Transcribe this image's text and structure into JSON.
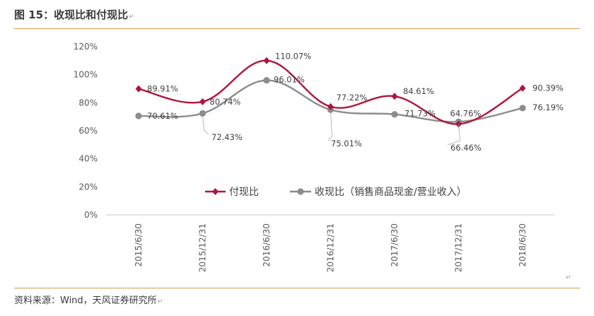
{
  "figure": {
    "title": "图 15：收现比和付现比",
    "source": "资料来源：Wind，天风证券研究所",
    "paragraph_mark": "↵"
  },
  "chart_data": {
    "type": "line",
    "title": "",
    "xlabel": "",
    "ylabel": "",
    "categories": [
      "2015/6/30",
      "2015/12/31",
      "2016/6/30",
      "2016/12/31",
      "2017/6/30",
      "2017/12/31",
      "2018/6/30"
    ],
    "yticks": [
      "0%",
      "20%",
      "40%",
      "60%",
      "80%",
      "100%",
      "120%"
    ],
    "ylim": [
      0,
      120
    ],
    "grid": false,
    "legend_position": "bottom-center",
    "series": [
      {
        "name": "付现比",
        "color": "#b0143c",
        "marker": "diamond",
        "values": [
          89.91,
          80.74,
          110.07,
          77.22,
          84.61,
          64.76,
          90.39
        ],
        "labels": [
          "89.91%",
          "80.74%",
          "110.07%",
          "77.22%",
          "84.61%",
          "64.76%",
          "90.39%"
        ]
      },
      {
        "name": "收现比（销售商品现金/营业收入）",
        "color": "#8c8c8c",
        "marker": "circle",
        "values": [
          70.61,
          72.43,
          96.01,
          75.01,
          71.73,
          66.46,
          76.19
        ],
        "labels": [
          "70.61%",
          "72.43%",
          "96.01%",
          "75.01%",
          "71.73%",
          "66.46%",
          "76.19%"
        ]
      }
    ]
  }
}
